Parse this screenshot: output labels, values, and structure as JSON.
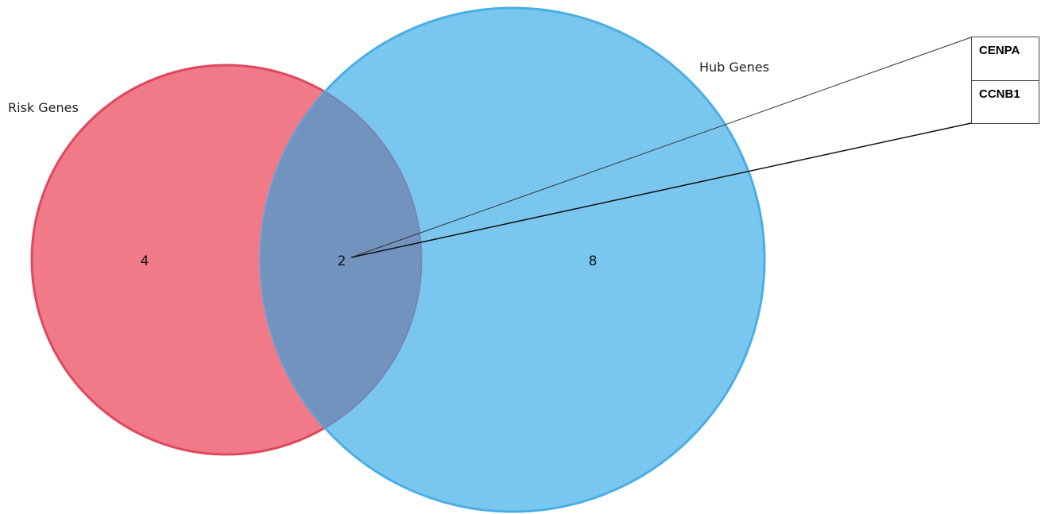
{
  "sets": [
    {
      "label": "Risk Genes",
      "color": "#ec5a6e"
    },
    {
      "label": "Hub Genes",
      "color": "#4db4e8"
    }
  ],
  "regions": {
    "risk_only": "4",
    "overlap": "2",
    "hub_only": "8"
  },
  "overlap_genes": [
    "CENPA",
    "CCNB1"
  ],
  "colors": {
    "risk_fill": "#f07a88",
    "risk_stroke": "#e0485e",
    "hub_fill": "#79c7ee",
    "hub_stroke": "#4aaee6",
    "overlap_fill": "#7393bf"
  }
}
